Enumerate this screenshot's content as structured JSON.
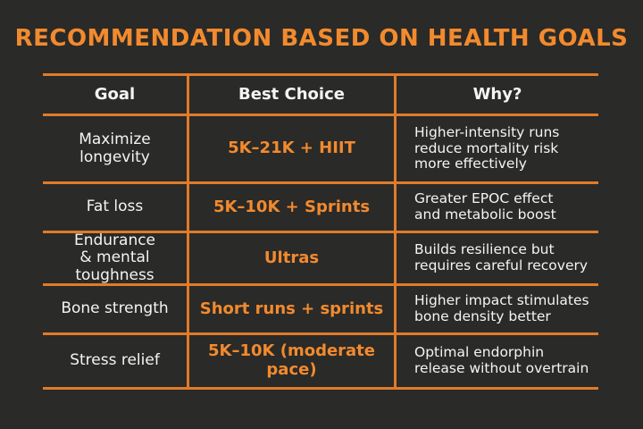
{
  "title": "RECOMMENDATION BASED ON HEALTH GOALS",
  "headers": {
    "goal": "Goal",
    "best": "Best Choice",
    "why": "Why?"
  },
  "rows": [
    {
      "goal": "Maximize\nlongevity",
      "best": "5K–21K + HIIT",
      "why": "Higher-intensity runs\nreduce mortality risk\nmore effectively"
    },
    {
      "goal": "Fat loss",
      "best": "5K–10K + Sprints",
      "why": "Greater EPOC effect\nand metabolic boost"
    },
    {
      "goal": "Endurance\n& mental toughness",
      "best": "Ultras",
      "why": "Builds resilience but\nrequires careful recovery"
    },
    {
      "goal": "Bone strength",
      "best": "Short runs + sprints",
      "why": "Higher impact stimulates\nbone density better"
    },
    {
      "goal": "Stress relief",
      "best": "5K–10K (moderate pace)",
      "why": "Optimal endorphin\nrelease without overtrain"
    }
  ],
  "colors": {
    "background": "#2a2a28",
    "accent": "#f28a2e",
    "grid": "#e07b2a",
    "text": "#f4f4f4"
  }
}
